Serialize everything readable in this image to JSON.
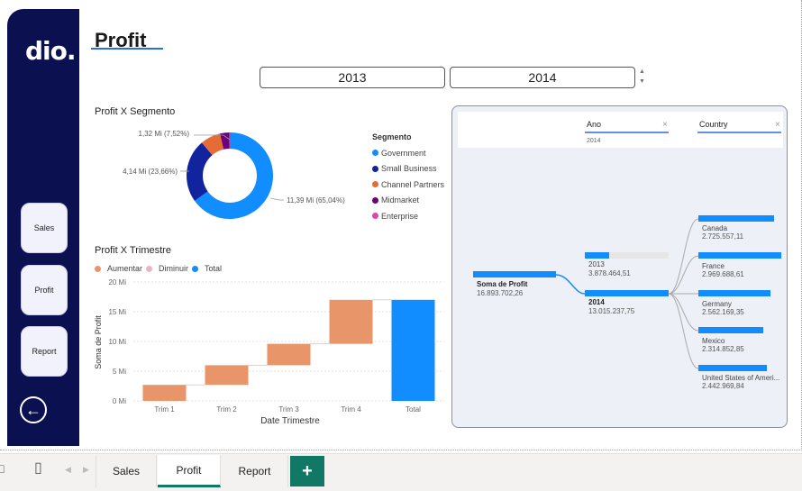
{
  "logo": "dio.",
  "page_title": "Profit",
  "nav": {
    "sales": "Sales",
    "profit": "Profit",
    "report": "Report"
  },
  "back_icon": "arrow-left-circle-icon",
  "year_slicer": {
    "from": "2013",
    "to": "2014"
  },
  "donut": {
    "title": "Profit X Segmento",
    "legend_title": "Segmento",
    "labels": {
      "top": "1,32 Mi (7,52%)",
      "left": "4,14 Mi (23,66%)",
      "right": "11,39 Mi (65,04%)"
    }
  },
  "waterfall": {
    "title": "Profit X Trimestre",
    "legend": [
      "Aumentar",
      "Diminuir",
      "Total"
    ],
    "ylabel": "Soma de Profit",
    "xlabel": "Date Trimestre"
  },
  "tree": {
    "field1": "Ano",
    "field1_value": "2014",
    "field2": "Country",
    "root_label": "Soma de Profit",
    "root_value": "16.893.702,26",
    "years": [
      {
        "label": "2013",
        "value": "3.878.464,51"
      },
      {
        "label": "2014",
        "value": "13.015.237,75"
      }
    ],
    "countries": [
      {
        "label": "Canada",
        "value": "2.725.557,11"
      },
      {
        "label": "France",
        "value": "2.969.688,61"
      },
      {
        "label": "Germany",
        "value": "2.562.169,35"
      },
      {
        "label": "Mexico",
        "value": "2.314.852,85"
      },
      {
        "label": "United States of Ameri...",
        "value": "2.442.969,84"
      }
    ]
  },
  "tabs": {
    "sales": "Sales",
    "profit": "Profit",
    "report": "Report",
    "add": "+"
  },
  "colors": {
    "navy": "#0b1150",
    "blue": "#118dff",
    "dark_blue": "#12239e",
    "orange": "#e66c37",
    "purple": "#6b007b",
    "pink": "#e044a7",
    "increase": "#e8956a",
    "decrease": "#e8b4c8",
    "tab_green": "#117865"
  },
  "chart_data": [
    {
      "type": "pie",
      "title": "Profit X Segmento",
      "legend_title": "Segmento",
      "categories": [
        "Government",
        "Small Business",
        "Channel Partners",
        "Midmarket",
        "Enterprise"
      ],
      "values": [
        11.39,
        4.14,
        1.32,
        0.62,
        0.02
      ],
      "unit": "Mi",
      "colors": [
        "#118dff",
        "#12239e",
        "#e66c37",
        "#6b007b",
        "#e044a7"
      ]
    },
    {
      "type": "bar",
      "subtype": "waterfall",
      "title": "Profit X Trimestre",
      "xlabel": "Date Trimestre",
      "ylabel": "Soma de Profit",
      "categories": [
        "Trim 1",
        "Trim 2",
        "Trim 3",
        "Trim 4",
        "Total"
      ],
      "values": [
        2.7,
        3.3,
        3.6,
        7.4,
        17.0
      ],
      "ylim": [
        0,
        20
      ],
      "yticks": [
        "0 Mi",
        "5 Mi",
        "10 Mi",
        "15 Mi",
        "20 Mi"
      ],
      "grid": true
    }
  ]
}
